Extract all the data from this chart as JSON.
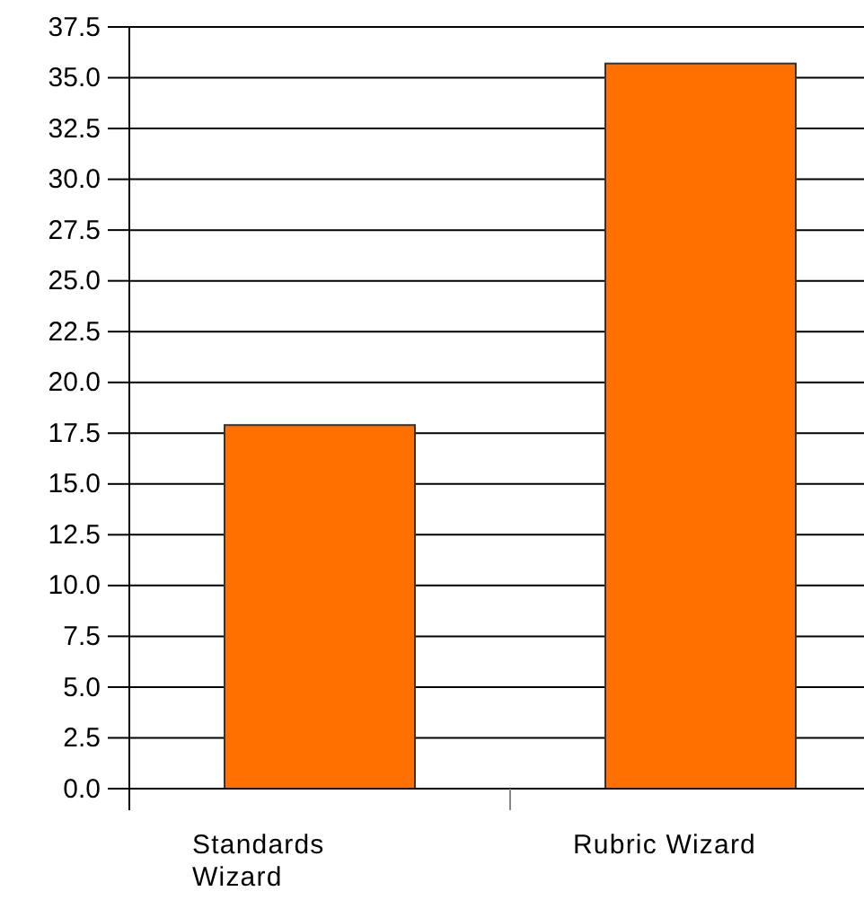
{
  "chart_data": {
    "type": "bar",
    "categories": [
      "Standards Wizard",
      "Rubric Wizard"
    ],
    "values": [
      17.9,
      35.7
    ],
    "color": "#ff7000",
    "ylim": [
      0,
      37.5
    ],
    "yticks": [
      {
        "value": 0,
        "label": "0.0"
      },
      {
        "value": 2.5,
        "label": "2.5"
      },
      {
        "value": 5,
        "label": "5.0"
      },
      {
        "value": 7.5,
        "label": "7.5"
      },
      {
        "value": 10,
        "label": "10.0"
      },
      {
        "value": 12.5,
        "label": "12.5"
      },
      {
        "value": 15,
        "label": "15.0"
      },
      {
        "value": 17.5,
        "label": "17.5"
      },
      {
        "value": 20,
        "label": "20.0"
      },
      {
        "value": 22.5,
        "label": "22.5"
      },
      {
        "value": 25,
        "label": "25.0"
      },
      {
        "value": 27.5,
        "label": "27.5"
      },
      {
        "value": 30,
        "label": "30.0"
      },
      {
        "value": 32.5,
        "label": "32.5"
      },
      {
        "value": 35,
        "label": "35.0"
      },
      {
        "value": 37.5,
        "label": "37.5"
      }
    ],
    "grid": "y"
  }
}
